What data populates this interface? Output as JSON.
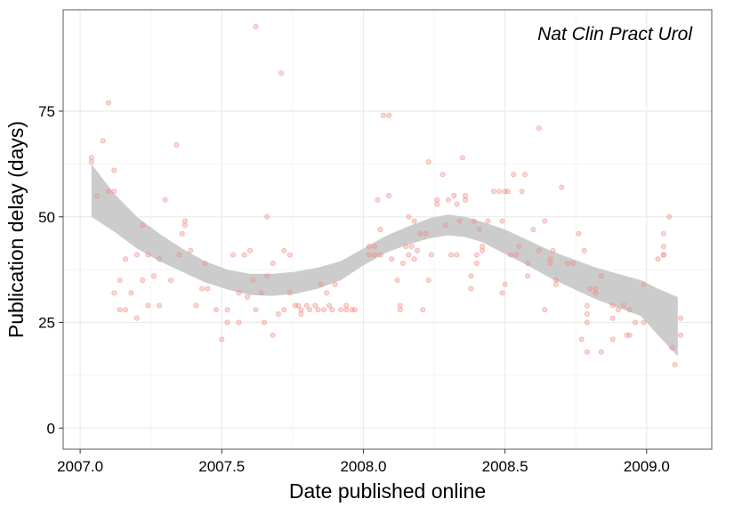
{
  "chart_data": {
    "type": "scatter",
    "title": "",
    "annotation": "Nat Clin Pract Urol",
    "xlabel": "Date published online",
    "ylabel": "Publication delay (days)",
    "xlim": [
      2006.94,
      2009.23
    ],
    "ylim": [
      -5,
      99
    ],
    "x_ticks": [
      2007.0,
      2007.5,
      2008.0,
      2008.5,
      2009.0
    ],
    "x_tick_labels": [
      "2007.0",
      "2007.5",
      "2008.0",
      "2008.5",
      "2009.0"
    ],
    "y_ticks": [
      0,
      25,
      50,
      75
    ],
    "y_tick_labels": [
      "0",
      "25",
      "50",
      "75"
    ],
    "grid": true,
    "point_color": "#f28b82",
    "band_color": "#cccccc",
    "points": [
      [
        2007.04,
        64
      ],
      [
        2007.04,
        63
      ],
      [
        2007.06,
        55
      ],
      [
        2007.08,
        68
      ],
      [
        2007.1,
        77
      ],
      [
        2007.1,
        56
      ],
      [
        2007.12,
        56
      ],
      [
        2007.12,
        61
      ],
      [
        2007.12,
        32
      ],
      [
        2007.14,
        35
      ],
      [
        2007.14,
        28
      ],
      [
        2007.16,
        28
      ],
      [
        2007.16,
        40
      ],
      [
        2007.18,
        32
      ],
      [
        2007.2,
        26
      ],
      [
        2007.2,
        41
      ],
      [
        2007.22,
        48
      ],
      [
        2007.22,
        35
      ],
      [
        2007.24,
        29
      ],
      [
        2007.24,
        41
      ],
      [
        2007.26,
        36
      ],
      [
        2007.28,
        40
      ],
      [
        2007.28,
        29
      ],
      [
        2007.3,
        54
      ],
      [
        2007.32,
        35
      ],
      [
        2007.34,
        67
      ],
      [
        2007.35,
        41
      ],
      [
        2007.36,
        46
      ],
      [
        2007.37,
        49
      ],
      [
        2007.37,
        48
      ],
      [
        2007.39,
        42
      ],
      [
        2007.41,
        29
      ],
      [
        2007.43,
        33
      ],
      [
        2007.44,
        39
      ],
      [
        2007.45,
        33
      ],
      [
        2007.48,
        28
      ],
      [
        2007.5,
        21
      ],
      [
        2007.52,
        28
      ],
      [
        2007.52,
        25
      ],
      [
        2007.54,
        41
      ],
      [
        2007.56,
        25
      ],
      [
        2007.56,
        32
      ],
      [
        2007.58,
        41
      ],
      [
        2007.59,
        31
      ],
      [
        2007.6,
        42
      ],
      [
        2007.61,
        35
      ],
      [
        2007.62,
        28
      ],
      [
        2007.62,
        95
      ],
      [
        2007.64,
        32
      ],
      [
        2007.65,
        25
      ],
      [
        2007.66,
        36
      ],
      [
        2007.66,
        50
      ],
      [
        2007.68,
        22
      ],
      [
        2007.68,
        39
      ],
      [
        2007.7,
        27
      ],
      [
        2007.71,
        84
      ],
      [
        2007.72,
        42
      ],
      [
        2007.72,
        28
      ],
      [
        2007.74,
        41
      ],
      [
        2007.74,
        32
      ],
      [
        2007.76,
        29
      ],
      [
        2007.77,
        29
      ],
      [
        2007.78,
        27
      ],
      [
        2007.78,
        28
      ],
      [
        2007.8,
        29
      ],
      [
        2007.81,
        28
      ],
      [
        2007.83,
        29
      ],
      [
        2007.84,
        28
      ],
      [
        2007.85,
        34
      ],
      [
        2007.86,
        28
      ],
      [
        2007.87,
        32
      ],
      [
        2007.88,
        29
      ],
      [
        2007.89,
        28
      ],
      [
        2007.9,
        34
      ],
      [
        2007.92,
        28
      ],
      [
        2007.94,
        28
      ],
      [
        2007.94,
        29
      ],
      [
        2007.96,
        28
      ],
      [
        2007.97,
        28
      ],
      [
        2008.02,
        43
      ],
      [
        2008.02,
        41
      ],
      [
        2008.04,
        43
      ],
      [
        2008.04,
        41
      ],
      [
        2008.05,
        54
      ],
      [
        2008.06,
        47
      ],
      [
        2008.06,
        41
      ],
      [
        2008.07,
        74
      ],
      [
        2008.09,
        74
      ],
      [
        2008.09,
        55
      ],
      [
        2008.1,
        40
      ],
      [
        2008.12,
        35
      ],
      [
        2008.13,
        29
      ],
      [
        2008.13,
        28
      ],
      [
        2008.14,
        39
      ],
      [
        2008.15,
        43
      ],
      [
        2008.16,
        41
      ],
      [
        2008.16,
        50
      ],
      [
        2008.17,
        43
      ],
      [
        2008.18,
        49
      ],
      [
        2008.18,
        40
      ],
      [
        2008.19,
        42
      ],
      [
        2008.2,
        46
      ],
      [
        2008.21,
        28
      ],
      [
        2008.22,
        46
      ],
      [
        2008.23,
        35
      ],
      [
        2008.23,
        63
      ],
      [
        2008.24,
        41
      ],
      [
        2008.26,
        53
      ],
      [
        2008.26,
        54
      ],
      [
        2008.28,
        60
      ],
      [
        2008.29,
        48
      ],
      [
        2008.3,
        54
      ],
      [
        2008.31,
        41
      ],
      [
        2008.32,
        55
      ],
      [
        2008.33,
        41
      ],
      [
        2008.33,
        53
      ],
      [
        2008.34,
        49
      ],
      [
        2008.35,
        64
      ],
      [
        2008.36,
        55
      ],
      [
        2008.36,
        54
      ],
      [
        2008.38,
        33
      ],
      [
        2008.38,
        36
      ],
      [
        2008.39,
        49
      ],
      [
        2008.4,
        41
      ],
      [
        2008.4,
        39
      ],
      [
        2008.41,
        47
      ],
      [
        2008.42,
        43
      ],
      [
        2008.42,
        42
      ],
      [
        2008.44,
        49
      ],
      [
        2008.46,
        56
      ],
      [
        2008.48,
        56
      ],
      [
        2008.49,
        32
      ],
      [
        2008.49,
        49
      ],
      [
        2008.5,
        56
      ],
      [
        2008.5,
        34
      ],
      [
        2008.51,
        56
      ],
      [
        2008.52,
        41
      ],
      [
        2008.53,
        60
      ],
      [
        2008.54,
        41
      ],
      [
        2008.55,
        43
      ],
      [
        2008.56,
        56
      ],
      [
        2008.57,
        60
      ],
      [
        2008.58,
        36
      ],
      [
        2008.58,
        39
      ],
      [
        2008.6,
        47
      ],
      [
        2008.62,
        71
      ],
      [
        2008.62,
        42
      ],
      [
        2008.64,
        49
      ],
      [
        2008.64,
        28
      ],
      [
        2008.66,
        40
      ],
      [
        2008.66,
        39
      ],
      [
        2008.67,
        42
      ],
      [
        2008.68,
        35
      ],
      [
        2008.68,
        34
      ],
      [
        2008.7,
        57
      ],
      [
        2008.72,
        39
      ],
      [
        2008.74,
        39
      ],
      [
        2008.76,
        46
      ],
      [
        2008.77,
        21
      ],
      [
        2008.78,
        42
      ],
      [
        2008.79,
        29
      ],
      [
        2008.79,
        27
      ],
      [
        2008.79,
        25
      ],
      [
        2008.79,
        18
      ],
      [
        2008.8,
        33
      ],
      [
        2008.82,
        32
      ],
      [
        2008.82,
        33
      ],
      [
        2008.84,
        36
      ],
      [
        2008.84,
        18
      ],
      [
        2008.88,
        29
      ],
      [
        2008.88,
        26
      ],
      [
        2008.88,
        21
      ],
      [
        2008.9,
        28
      ],
      [
        2008.92,
        29
      ],
      [
        2008.93,
        22
      ],
      [
        2008.94,
        28
      ],
      [
        2008.94,
        22
      ],
      [
        2008.96,
        25
      ],
      [
        2008.99,
        34
      ],
      [
        2008.99,
        25
      ],
      [
        2009.04,
        40
      ],
      [
        2009.06,
        46
      ],
      [
        2009.06,
        43
      ],
      [
        2009.06,
        41
      ],
      [
        2009.06,
        41
      ],
      [
        2009.08,
        50
      ],
      [
        2009.09,
        19
      ],
      [
        2009.1,
        15
      ],
      [
        2009.12,
        26
      ],
      [
        2009.12,
        22
      ]
    ],
    "smooth_band": {
      "x": [
        2007.04,
        2007.12,
        2007.2,
        2007.28,
        2007.36,
        2007.44,
        2007.52,
        2007.6,
        2007.68,
        2007.76,
        2007.84,
        2007.92,
        2008.0,
        2008.08,
        2008.16,
        2008.24,
        2008.3,
        2008.36,
        2008.42,
        2008.5,
        2008.58,
        2008.66,
        2008.74,
        2008.82,
        2008.9,
        2008.98,
        2009.04,
        2009.11
      ],
      "upper": [
        62.5,
        55.5,
        50.0,
        46.0,
        42.5,
        39.5,
        37.5,
        36.5,
        36.5,
        37.0,
        38.0,
        39.5,
        42.5,
        45.5,
        47.8,
        49.8,
        50.5,
        50.0,
        48.8,
        47.0,
        44.5,
        42.0,
        40.0,
        38.0,
        36.5,
        35.0,
        33.0,
        31.0
      ],
      "lower": [
        50.0,
        46.5,
        42.5,
        39.5,
        37.0,
        34.5,
        32.8,
        31.5,
        31.3,
        31.8,
        33.0,
        35.0,
        38.5,
        41.5,
        43.5,
        45.0,
        45.6,
        45.2,
        44.0,
        41.2,
        38.5,
        35.5,
        33.0,
        30.5,
        28.5,
        26.5,
        22.0,
        17.0
      ]
    }
  }
}
